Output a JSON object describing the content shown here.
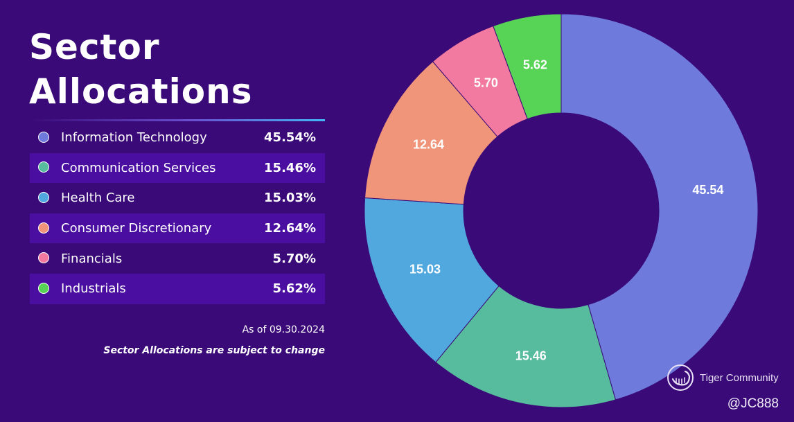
{
  "header": {
    "title_line1": "Sector",
    "title_line2": "Allocations"
  },
  "legend": [
    {
      "name": "Information Technology",
      "value": "45.54%"
    },
    {
      "name": "Communication Services",
      "value": "15.46%"
    },
    {
      "name": "Health Care",
      "value": "15.03%"
    },
    {
      "name": "Consumer Discretionary",
      "value": "12.64%"
    },
    {
      "name": "Financials",
      "value": "5.70%"
    },
    {
      "name": "Industrials",
      "value": "5.62%"
    }
  ],
  "footer": {
    "as_of": "As of 09.30.2024",
    "disclaimer": "Sector Allocations are subject to change"
  },
  "watermark": {
    "brand": "Tiger Community",
    "handle": "@JC888"
  },
  "colors": {
    "background": "#3a0a78",
    "Information Technology": "#6f7bdc",
    "Communication Services": "#57bb9d",
    "Health Care": "#51a8de",
    "Consumer Discretionary": "#f0957a",
    "Financials": "#f27aa0",
    "Industrials": "#57d455"
  },
  "chart_data": {
    "type": "pie",
    "variant": "donut",
    "title": "Sector Allocations",
    "categories": [
      "Information Technology",
      "Communication Services",
      "Health Care",
      "Consumer Discretionary",
      "Financials",
      "Industrials"
    ],
    "values": [
      45.54,
      15.46,
      15.03,
      12.64,
      5.7,
      5.62
    ],
    "data_labels": [
      "45.54",
      "15.46",
      "15.03",
      "12.64",
      "5.70",
      "5.62"
    ],
    "start_angle_deg": 0,
    "direction": "clockwise",
    "legend": "left"
  }
}
